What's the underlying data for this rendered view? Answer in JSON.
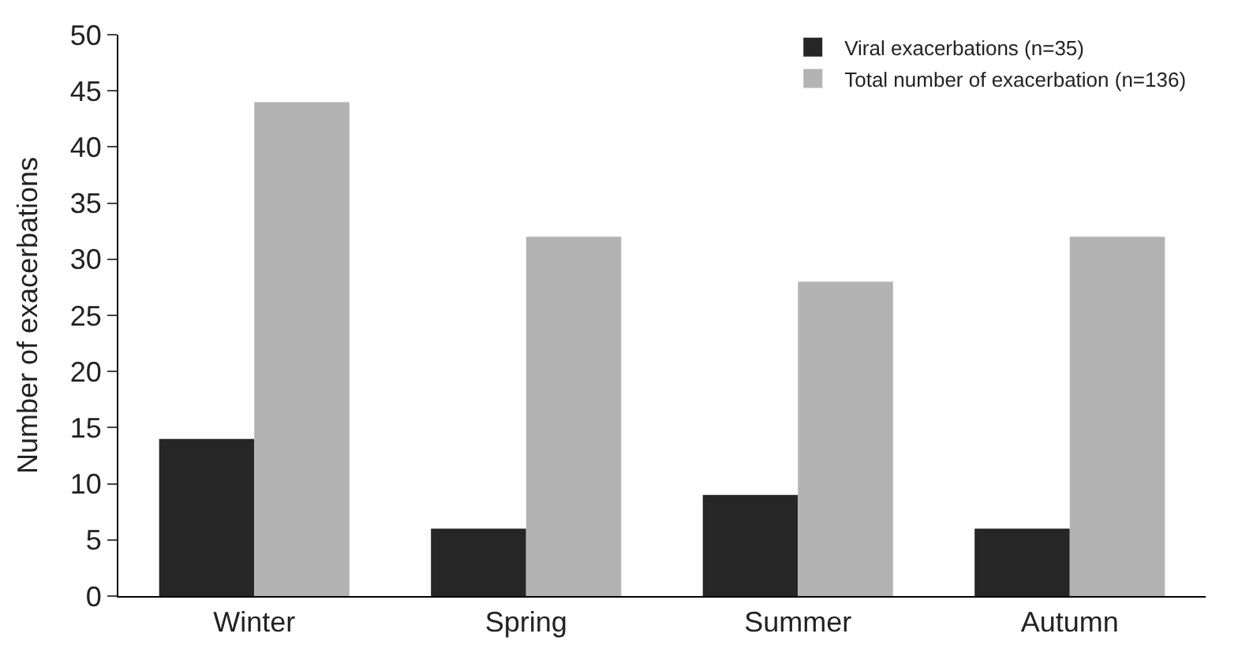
{
  "chart_data": {
    "type": "bar",
    "ylabel": "Number of exacerbations",
    "categories": [
      "Winter",
      "Spring",
      "Summer",
      "Autumn"
    ],
    "series": [
      {
        "name": "Viral exacerbations (n=35)",
        "color": "#262626",
        "values": [
          14,
          6,
          9,
          6
        ]
      },
      {
        "name": "Total number of exacerbation (n=136)",
        "color": "#b3b3b3",
        "values": [
          44,
          32,
          28,
          32
        ]
      }
    ],
    "ylim": [
      0,
      50
    ],
    "yticks": [
      0,
      5,
      10,
      15,
      20,
      25,
      30,
      35,
      40,
      45,
      50
    ],
    "grid": false,
    "legend": "top right"
  }
}
